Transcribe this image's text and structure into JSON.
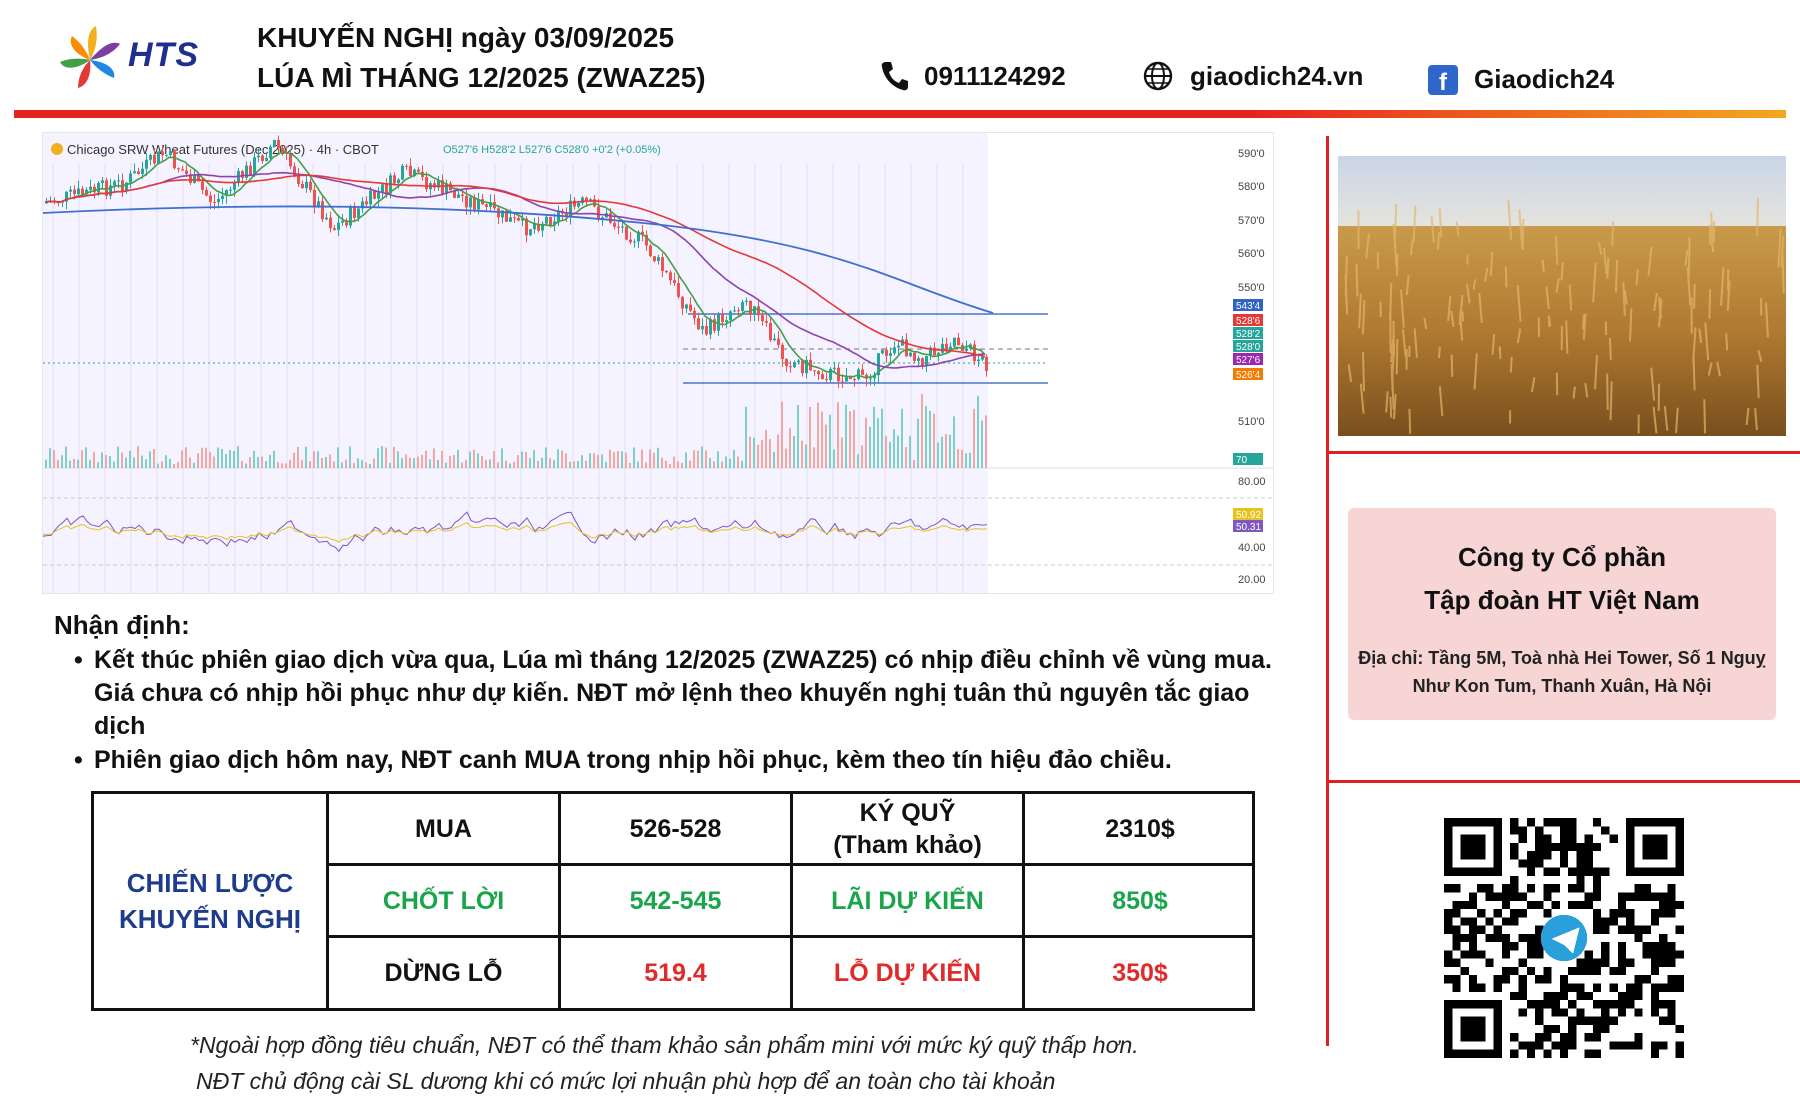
{
  "header": {
    "brand": "HTS",
    "title_line1": "KHUYẾN NGHỊ ngày 03/09/2025",
    "title_line2": "LÚA MÌ THÁNG 12/2025 (ZWAZ25)",
    "phone": "0911124292",
    "website": "giaodich24.vn",
    "facebook": "Giaodich24"
  },
  "chart": {
    "symbol_title": "Chicago SRW Wheat Futures (Dec 2025) · 4h · CBOT",
    "ohlc": "O527'6 H528'2 L527'6 C528'0 +0'2 (+0.05%)",
    "price_ticks": [
      "590'0",
      "580'0",
      "570'0",
      "560'0",
      "550'0",
      "510'0"
    ],
    "osc_ticks": [
      "80.00",
      "40.00",
      "20.00"
    ],
    "badges": [
      {
        "text": "543'4",
        "color": "#2f63c5"
      },
      {
        "text": "528'6",
        "color": "#e53935"
      },
      {
        "text": "528'2",
        "color": "#26a69a"
      },
      {
        "text": "528'0",
        "color": "#26a69a"
      },
      {
        "text": "527'6",
        "color": "#9c27b0"
      },
      {
        "text": "526'4",
        "color": "#f57c00"
      },
      {
        "text": "70",
        "color": "#26a69a"
      },
      {
        "text": "50.92",
        "color": "#e8c21d"
      },
      {
        "text": "50.31",
        "color": "#7e57c2"
      }
    ]
  },
  "company": {
    "name_line1": "Công ty Cổ phần",
    "name_line2": "Tập đoàn HT Việt Nam",
    "address": "Địa chỉ: Tầng 5M, Toà nhà Hei Tower, Số 1 Nguỵ Như Kon Tum, Thanh Xuân, Hà Nội"
  },
  "commentary": {
    "heading": "Nhận định:",
    "bullets": [
      "Kết thúc phiên giao dịch vừa qua, Lúa mì tháng 12/2025 (ZWAZ25) có nhịp điều chỉnh về vùng mua. Giá chưa có nhịp hồi phục như dự kiến. NĐT mở lệnh theo khuyến nghị tuân thủ nguyên tắc giao dịch",
      "Phiên giao dịch hôm nay, NĐT canh MUA trong nhịp hồi phục, kèm theo tín hiệu đảo chiều."
    ]
  },
  "strategy": {
    "label_line1": "CHIẾN LƯỢC",
    "label_line2": "KHUYẾN NGHỊ",
    "rows": [
      {
        "action": "MUA",
        "range": "526-528",
        "metric": "KÝ QUỸ\n(Tham khảo)",
        "amount": "2310$"
      },
      {
        "action": "CHỐT LỜI",
        "range": "542-545",
        "metric": "LÃI DỰ KIẾN",
        "amount": "850$"
      },
      {
        "action": "DỪNG LỖ",
        "range": "519.4",
        "metric": "LỖ DỰ KIẾN",
        "amount": "350$"
      }
    ]
  },
  "notes": [
    "*Ngoài hợp đồng tiêu chuẩn, NĐT có thể tham khảo sản phẩm mini với mức ký quỹ thấp hơn.",
    "NĐT chủ động cài SL dương khi có mức lợi nhuận phù hợp để an toàn cho tài khoản"
  ]
}
